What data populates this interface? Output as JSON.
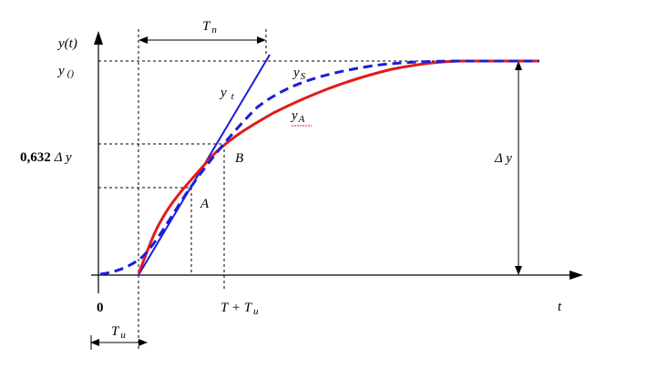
{
  "labels": {
    "y_axis": "y(t)",
    "y_final": "y",
    "y_final_sub": "()",
    "tn": "T",
    "tn_sub": "n",
    "yt": "y",
    "yt_sub": "t",
    "ys": "y",
    "ys_sub": "S",
    "ya": "y",
    "ya_sub": "A",
    "level_value": "0,632",
    "level_delta": "Δ y",
    "point_b": "B",
    "point_a": "A",
    "delta_y": "Δ y",
    "origin": "0",
    "x_axis": "t",
    "t_plus": "T + T",
    "t_plus_sub": "u",
    "tu": "T",
    "tu_sub": "u"
  },
  "colors": {
    "axes": "#000000",
    "guide": "#000000",
    "tangent": "#1c1cdc",
    "model_curve": "#1c1cdc",
    "measured_curve": "#e01b1b"
  }
}
